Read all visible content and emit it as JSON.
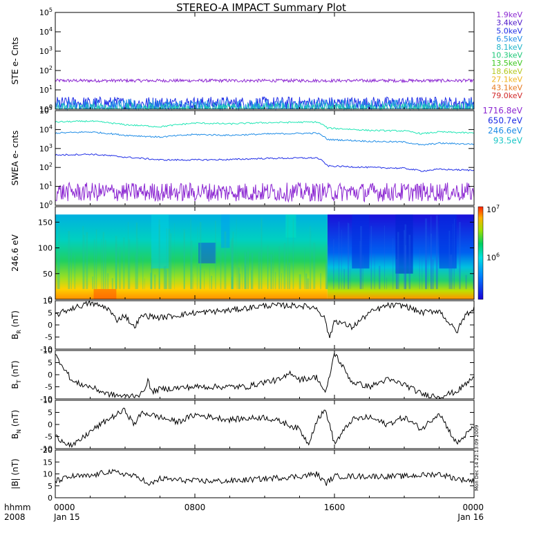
{
  "chart_data": {
    "type": "line",
    "title": "STEREO-A IMPACT Summary Plot",
    "time_axis": {
      "label_row1": "hhmm",
      "label_row2": "2008",
      "ticks": [
        {
          "hhmm": "0000",
          "date": "Jan 15",
          "hours": 0
        },
        {
          "hhmm": "0800",
          "date": "",
          "hours": 8
        },
        {
          "hhmm": "1600",
          "date": "",
          "hours": 16
        },
        {
          "hhmm": "0000",
          "date": "Jan 16",
          "hours": 24
        }
      ],
      "range_hours": [
        0,
        24
      ]
    },
    "panels": [
      {
        "id": "ste",
        "ylabel": "STE e- Cnts",
        "scale": "log",
        "ylim": [
          1,
          100000
        ],
        "tick_labels": [
          "10^0",
          "10^1",
          "10^2",
          "10^3",
          "10^4",
          "10^5"
        ],
        "legend": [
          {
            "label": "1.9keV",
            "color": "#8c28d2"
          },
          {
            "label": "3.4keV",
            "color": "#4b14c8"
          },
          {
            "label": "5.0keV",
            "color": "#1e2ce6"
          },
          {
            "label": "6.5keV",
            "color": "#1e8ce6"
          },
          {
            "label": "8.1keV",
            "color": "#1eb4c8"
          },
          {
            "label": "10.3keV",
            "color": "#1ec878"
          },
          {
            "label": "13.5keV",
            "color": "#3cc81e"
          },
          {
            "label": "18.6keV",
            "color": "#b4c81e"
          },
          {
            "label": "27.1keV",
            "color": "#f0b41e"
          },
          {
            "label": "43.1keV",
            "color": "#e6781e"
          },
          {
            "label": "79.0keV",
            "color": "#d22828"
          }
        ],
        "series": [
          {
            "label": "1.9keV",
            "level": 30,
            "noise": 0.08,
            "color": "#8c28d2"
          },
          {
            "label": "3.4keV",
            "level": 2,
            "noise": 0.35,
            "color": "#1e2ce6"
          },
          {
            "label": "5.0keV",
            "level": 1.3,
            "noise": 0.4,
            "color": "#1e8ce6"
          },
          {
            "label": "6.5keV",
            "level": 1.05,
            "noise": 0.3,
            "color": "#1ec8b4"
          }
        ]
      },
      {
        "id": "swea",
        "ylabel": "SWEA e- cnts",
        "scale": "log",
        "ylim": [
          1,
          100000
        ],
        "tick_labels": [
          "10^0",
          "10^1",
          "10^2",
          "10^3",
          "10^4",
          "10^5"
        ],
        "legend": [
          {
            "label": "1716.8eV",
            "color": "#8c28d2"
          },
          {
            "label": "650.7eV",
            "color": "#1e2ce6"
          },
          {
            "label": "246.6eV",
            "color": "#1e8ce6"
          },
          {
            "label": "93.5eV",
            "color": "#1ec8c8"
          }
        ],
        "series": [
          {
            "label": "93.5eV",
            "color": "#1ee6b4",
            "points": [
              [
                0,
                25000
              ],
              [
                2,
                28000
              ],
              [
                4,
                18000
              ],
              [
                6,
                14000
              ],
              [
                8,
                22000
              ],
              [
                10,
                20000
              ],
              [
                12,
                23000
              ],
              [
                15,
                25000
              ],
              [
                15.6,
                12000
              ],
              [
                18,
                9000
              ],
              [
                20,
                8500
              ],
              [
                21,
                6000
              ],
              [
                22,
                7500
              ],
              [
                24,
                6500
              ]
            ]
          },
          {
            "label": "246.6eV",
            "color": "#1e8ce6",
            "points": [
              [
                0,
                6500
              ],
              [
                2,
                7500
              ],
              [
                4,
                5000
              ],
              [
                6,
                4000
              ],
              [
                8,
                5500
              ],
              [
                10,
                5000
              ],
              [
                12,
                5800
              ],
              [
                15,
                6500
              ],
              [
                15.6,
                3000
              ],
              [
                18,
                2400
              ],
              [
                20,
                2200
              ],
              [
                21,
                1500
              ],
              [
                22,
                1900
              ],
              [
                24,
                1700
              ]
            ]
          },
          {
            "label": "650.7eV",
            "color": "#1e2ce6",
            "points": [
              [
                0,
                450
              ],
              [
                2,
                500
              ],
              [
                4,
                350
              ],
              [
                6,
                250
              ],
              [
                8,
                250
              ],
              [
                10,
                260
              ],
              [
                12,
                300
              ],
              [
                15,
                320
              ],
              [
                15.6,
                120
              ],
              [
                18,
                100
              ],
              [
                20,
                90
              ],
              [
                21,
                65
              ],
              [
                22,
                80
              ],
              [
                24,
                70
              ]
            ]
          },
          {
            "label": "1716.8eV",
            "color": "#8c28d2",
            "level": 5,
            "noise": 0.5
          }
        ]
      },
      {
        "id": "pad",
        "type": "heatmap",
        "ylabel": "246.6 eV",
        "scale": "linear",
        "ylim": [
          0,
          180
        ],
        "yticks": [
          0,
          50,
          100,
          150
        ],
        "colorbar": {
          "scale": "log",
          "labels": [
            "10^7",
            "10^6"
          ],
          "max": 10000000,
          "label_value_2": 1000000
        }
      },
      {
        "id": "br",
        "ylabel": "B_R (nT)",
        "scale": "linear",
        "ylim": [
          -10,
          10
        ],
        "yticks": [
          10,
          5,
          0,
          -5,
          -10
        ],
        "series": [
          {
            "label": "BR",
            "color": "#000000",
            "points": [
              [
                0,
                4
              ],
              [
                1,
                7
              ],
              [
                2,
                9
              ],
              [
                3,
                7
              ],
              [
                3.5,
                2
              ],
              [
                4,
                4
              ],
              [
                4.5,
                -1
              ],
              [
                5,
                4
              ],
              [
                6,
                3
              ],
              [
                8,
                5
              ],
              [
                10,
                6
              ],
              [
                12,
                8
              ],
              [
                14,
                8
              ],
              [
                15,
                7
              ],
              [
                15.5,
                2
              ],
              [
                15.7,
                -6
              ],
              [
                16,
                2
              ],
              [
                17,
                -1
              ],
              [
                18,
                5
              ],
              [
                19,
                8
              ],
              [
                20,
                8
              ],
              [
                21,
                5
              ],
              [
                22,
                6
              ],
              [
                23,
                -3
              ],
              [
                23.5,
                4
              ],
              [
                24,
                7
              ]
            ]
          }
        ]
      },
      {
        "id": "bt",
        "ylabel": "B_T (nT)",
        "scale": "linear",
        "ylim": [
          -10,
          10
        ],
        "yticks": [
          10,
          5,
          0,
          -5,
          -10
        ],
        "series": [
          {
            "label": "BT",
            "color": "#000000",
            "points": [
              [
                0,
                8
              ],
              [
                0.5,
                3
              ],
              [
                1,
                -3
              ],
              [
                2,
                -5
              ],
              [
                3,
                -8
              ],
              [
                4,
                -9
              ],
              [
                5,
                -8
              ],
              [
                5.3,
                -2
              ],
              [
                5.5,
                -7
              ],
              [
                6,
                -6
              ],
              [
                8,
                -5
              ],
              [
                10,
                -5
              ],
              [
                11,
                -5
              ],
              [
                12,
                -3
              ],
              [
                13,
                -2
              ],
              [
                13.5,
                1
              ],
              [
                14,
                -2
              ],
              [
                15,
                -1
              ],
              [
                15.5,
                -8
              ],
              [
                16,
                9
              ],
              [
                17,
                -3
              ],
              [
                18,
                -5
              ],
              [
                19,
                -2
              ],
              [
                20,
                -4
              ],
              [
                21,
                -8
              ],
              [
                22,
                -9
              ],
              [
                23,
                -7
              ],
              [
                24,
                -1
              ]
            ]
          }
        ]
      },
      {
        "id": "bn",
        "ylabel": "B_N (nT)",
        "scale": "linear",
        "ylim": [
          -10,
          10
        ],
        "yticks": [
          10,
          5,
          0,
          -5,
          -10
        ],
        "series": [
          {
            "label": "BN",
            "color": "#000000",
            "points": [
              [
                0,
                -5
              ],
              [
                1,
                -9
              ],
              [
                2,
                -3
              ],
              [
                3,
                2
              ],
              [
                4,
                6
              ],
              [
                4.5,
                0
              ],
              [
                5,
                5
              ],
              [
                6,
                3
              ],
              [
                7,
                1
              ],
              [
                8,
                4
              ],
              [
                10,
                2
              ],
              [
                12,
                3
              ],
              [
                13,
                1
              ],
              [
                14,
                -2
              ],
              [
                14.5,
                -8
              ],
              [
                15,
                2
              ],
              [
                15.5,
                6
              ],
              [
                16,
                -8
              ],
              [
                17,
                2
              ],
              [
                18,
                3
              ],
              [
                19,
                0
              ],
              [
                20,
                3
              ],
              [
                21,
                -2
              ],
              [
                22,
                5
              ],
              [
                23,
                -8
              ],
              [
                24,
                -1
              ]
            ]
          }
        ]
      },
      {
        "id": "bmag",
        "ylabel": "|B| (nT)",
        "scale": "linear",
        "ylim": [
          0,
          20
        ],
        "yticks": [
          20,
          15,
          10,
          5,
          0
        ],
        "series": [
          {
            "label": "|B|",
            "color": "#000000",
            "points": [
              [
                0,
                7
              ],
              [
                1,
                9
              ],
              [
                2,
                9
              ],
              [
                3,
                11
              ],
              [
                4,
                10
              ],
              [
                5,
                8
              ],
              [
                5.3,
                5
              ],
              [
                6,
                8
              ],
              [
                8,
                7
              ],
              [
                10,
                7
              ],
              [
                12,
                8
              ],
              [
                14,
                9
              ],
              [
                15,
                10
              ],
              [
                15.5,
                6
              ],
              [
                16,
                9
              ],
              [
                18,
                9
              ],
              [
                20,
                9
              ],
              [
                22,
                10
              ],
              [
                23,
                8
              ],
              [
                24,
                7
              ]
            ]
          }
        ]
      }
    ],
    "side_text": "Mon Dec 14 22:13:09 2009"
  }
}
